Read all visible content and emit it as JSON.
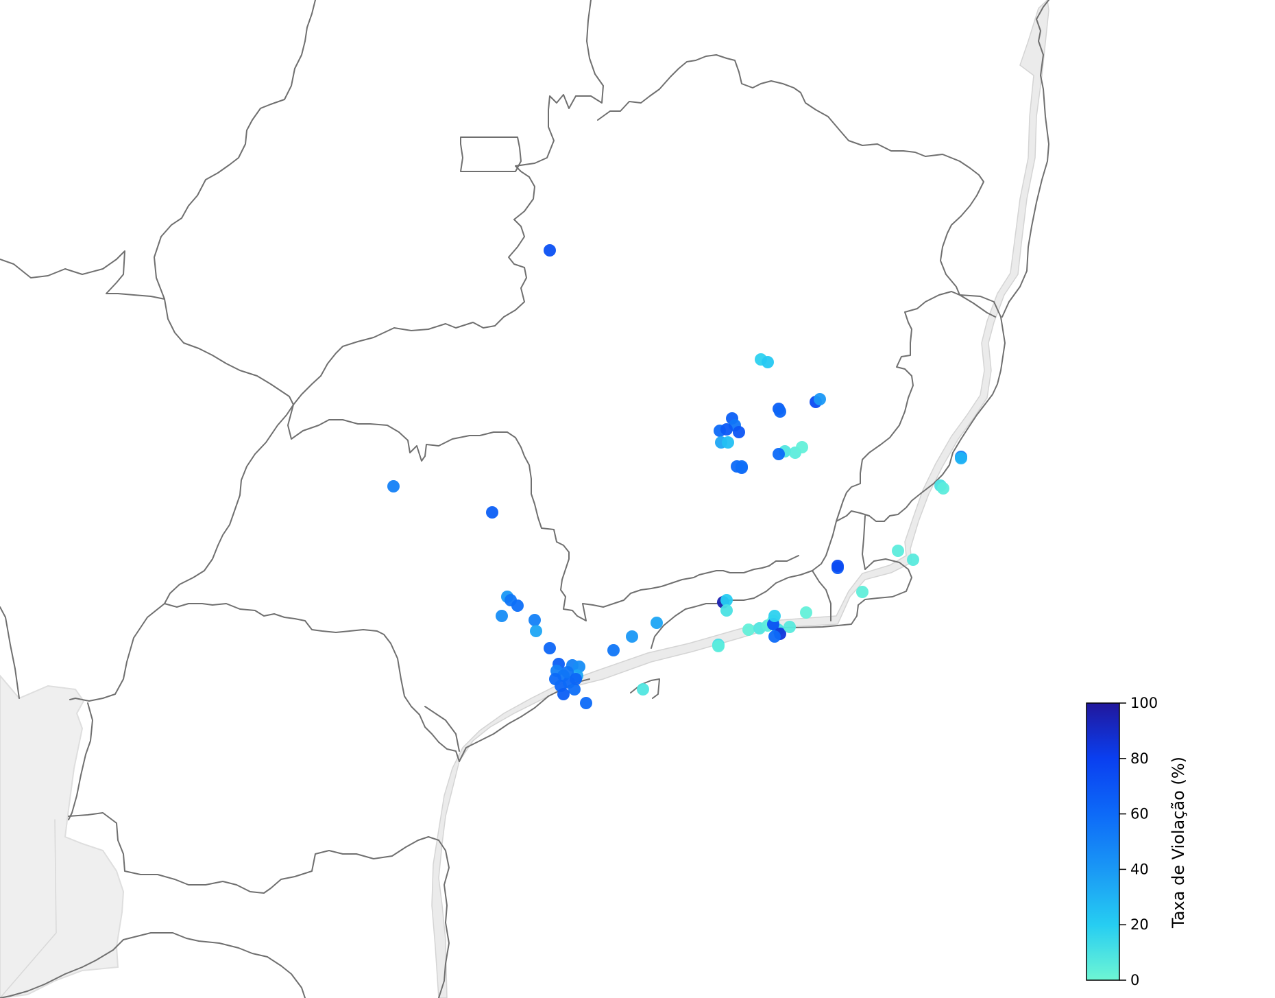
{
  "map": {
    "region": "southeast-brazil",
    "point_color_scale": {
      "stops": [
        {
          "value": 0,
          "color": "#6ef6d4"
        },
        {
          "value": 20,
          "color": "#26cdf2"
        },
        {
          "value": 40,
          "color": "#1a98f5"
        },
        {
          "value": 60,
          "color": "#0d6af8"
        },
        {
          "value": 80,
          "color": "#0a3ff0"
        },
        {
          "value": 100,
          "color": "#21179c"
        }
      ]
    },
    "points": [
      {
        "v": 72
      },
      {
        "v": 18
      },
      {
        "v": 22
      },
      {
        "v": 65
      },
      {
        "v": 55
      },
      {
        "v": 70
      },
      {
        "v": 60
      },
      {
        "v": 68
      },
      {
        "v": 35
      },
      {
        "v": 25
      },
      {
        "v": 60
      },
      {
        "v": 62
      },
      {
        "v": 75
      },
      {
        "v": 40
      },
      {
        "v": 65
      },
      {
        "v": 62
      },
      {
        "v": 8
      },
      {
        "v": 5
      },
      {
        "v": 3
      },
      {
        "v": 60
      },
      {
        "v": 58
      },
      {
        "v": 50
      },
      {
        "v": 65
      },
      {
        "v": 40
      },
      {
        "v": 55
      },
      {
        "v": 58
      },
      {
        "v": 45
      },
      {
        "v": 50
      },
      {
        "v": 35
      },
      {
        "v": 62
      },
      {
        "v": 65
      },
      {
        "v": 50
      },
      {
        "v": 55
      },
      {
        "v": 50
      },
      {
        "v": 45
      },
      {
        "v": 35
      },
      {
        "v": 62
      },
      {
        "v": 60
      },
      {
        "v": 58
      },
      {
        "v": 65
      },
      {
        "v": 60
      },
      {
        "v": 55
      },
      {
        "v": 62
      },
      {
        "v": 60
      },
      {
        "v": 68
      },
      {
        "v": 5
      },
      {
        "v": 6
      },
      {
        "v": 95
      },
      {
        "v": 20
      },
      {
        "v": 3
      },
      {
        "v": 8
      },
      {
        "v": 5
      },
      {
        "v": 4
      },
      {
        "v": 10
      },
      {
        "v": 72
      },
      {
        "v": 85
      },
      {
        "v": 60
      },
      {
        "v": 6
      },
      {
        "v": 18
      },
      {
        "v": 75
      },
      {
        "v": 50
      },
      {
        "v": 10
      },
      {
        "v": 5
      },
      {
        "v": 4
      },
      {
        "v": 3
      },
      {
        "v": 35
      },
      {
        "v": 12
      },
      {
        "v": 8
      },
      {
        "v": 40
      },
      {
        "v": 55
      },
      {
        "v": 5
      },
      {
        "v": 30
      },
      {
        "v": 10
      }
    ]
  },
  "colorbar": {
    "title": "Taxa de Violação (%)",
    "min": 0,
    "max": 100,
    "ticks": [
      "0",
      "20",
      "40",
      "60",
      "80",
      "100"
    ]
  }
}
